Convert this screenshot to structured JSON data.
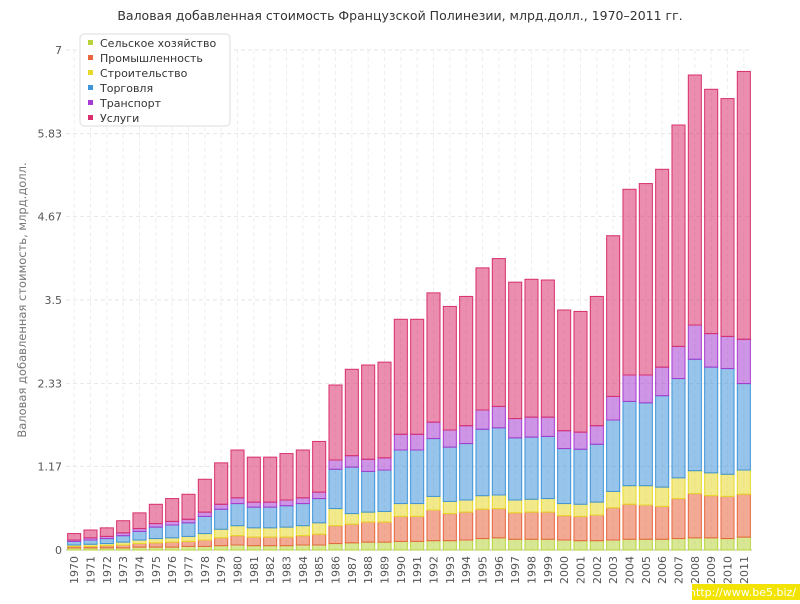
{
  "chart_data": {
    "type": "stacked_bar",
    "title": "Валовая добавленная стоимость Французской Полинезии, млрд.долл., 1970–2011 гг.",
    "y_label": "Валовая добавленная стоимость, млрд.долл.",
    "watermark": "http://www.be5.biz/",
    "legend": "top-left",
    "grid": true,
    "ylim": [
      0,
      7
    ],
    "yticks": [
      0,
      1.17,
      2.33,
      3.5,
      4.67,
      5.83,
      7
    ],
    "categories": [
      "1970",
      "1971",
      "1972",
      "1973",
      "1974",
      "1975",
      "1976",
      "1977",
      "1978",
      "1979",
      "1980",
      "1981",
      "1982",
      "1983",
      "1984",
      "1985",
      "1986",
      "1987",
      "1988",
      "1989",
      "1990",
      "1991",
      "1992",
      "1993",
      "1994",
      "1995",
      "1996",
      "1997",
      "1998",
      "1999",
      "2000",
      "2001",
      "2002",
      "2003",
      "2004",
      "2005",
      "2006",
      "2007",
      "2008",
      "2009",
      "2010",
      "2011"
    ],
    "series": [
      {
        "name": "Сельское хозяйство",
        "color": "#b8d43a",
        "values": [
          0.03,
          0.03,
          0.03,
          0.03,
          0.04,
          0.04,
          0.04,
          0.05,
          0.05,
          0.06,
          0.07,
          0.06,
          0.06,
          0.06,
          0.07,
          0.07,
          0.09,
          0.1,
          0.11,
          0.11,
          0.12,
          0.12,
          0.13,
          0.13,
          0.14,
          0.16,
          0.17,
          0.15,
          0.15,
          0.15,
          0.14,
          0.13,
          0.13,
          0.14,
          0.15,
          0.15,
          0.15,
          0.16,
          0.17,
          0.17,
          0.16,
          0.18
        ]
      },
      {
        "name": "Промышленность",
        "color": "#e8653e",
        "values": [
          0.02,
          0.02,
          0.03,
          0.04,
          0.05,
          0.06,
          0.07,
          0.07,
          0.09,
          0.11,
          0.13,
          0.12,
          0.12,
          0.12,
          0.13,
          0.15,
          0.25,
          0.26,
          0.28,
          0.28,
          0.35,
          0.35,
          0.43,
          0.38,
          0.39,
          0.41,
          0.41,
          0.37,
          0.38,
          0.38,
          0.34,
          0.34,
          0.36,
          0.45,
          0.49,
          0.48,
          0.46,
          0.56,
          0.62,
          0.59,
          0.59,
          0.6
        ]
      },
      {
        "name": "Строительство",
        "color": "#e8d82a",
        "values": [
          0.02,
          0.03,
          0.03,
          0.04,
          0.05,
          0.06,
          0.06,
          0.07,
          0.09,
          0.12,
          0.14,
          0.13,
          0.13,
          0.14,
          0.14,
          0.16,
          0.24,
          0.15,
          0.14,
          0.15,
          0.18,
          0.18,
          0.19,
          0.17,
          0.17,
          0.19,
          0.19,
          0.18,
          0.18,
          0.19,
          0.17,
          0.17,
          0.18,
          0.23,
          0.26,
          0.27,
          0.27,
          0.29,
          0.32,
          0.32,
          0.31,
          0.34
        ]
      },
      {
        "name": "Торговля",
        "color": "#3f94d8",
        "values": [
          0.05,
          0.06,
          0.07,
          0.09,
          0.12,
          0.16,
          0.18,
          0.19,
          0.24,
          0.28,
          0.31,
          0.29,
          0.29,
          0.3,
          0.31,
          0.34,
          0.55,
          0.65,
          0.57,
          0.58,
          0.75,
          0.75,
          0.81,
          0.76,
          0.79,
          0.93,
          0.94,
          0.87,
          0.87,
          0.87,
          0.77,
          0.77,
          0.81,
          1.0,
          1.18,
          1.16,
          1.28,
          1.39,
          1.56,
          1.48,
          1.48,
          1.21
        ]
      },
      {
        "name": "Транспорт",
        "color": "#a63ccf",
        "values": [
          0.02,
          0.03,
          0.03,
          0.04,
          0.04,
          0.05,
          0.05,
          0.05,
          0.06,
          0.07,
          0.08,
          0.07,
          0.07,
          0.08,
          0.08,
          0.09,
          0.13,
          0.16,
          0.17,
          0.17,
          0.22,
          0.22,
          0.23,
          0.24,
          0.25,
          0.27,
          0.3,
          0.27,
          0.28,
          0.27,
          0.25,
          0.24,
          0.26,
          0.33,
          0.37,
          0.39,
          0.4,
          0.45,
          0.48,
          0.47,
          0.45,
          0.62
        ]
      },
      {
        "name": "Услуги",
        "color": "#d8306c",
        "values": [
          0.09,
          0.11,
          0.12,
          0.17,
          0.22,
          0.27,
          0.32,
          0.35,
          0.46,
          0.58,
          0.67,
          0.63,
          0.63,
          0.65,
          0.67,
          0.71,
          1.05,
          1.21,
          1.32,
          1.34,
          1.61,
          1.61,
          1.81,
          1.73,
          1.81,
          1.99,
          2.07,
          1.91,
          1.93,
          1.92,
          1.69,
          1.69,
          1.81,
          2.25,
          2.6,
          2.68,
          2.77,
          3.1,
          3.5,
          3.42,
          3.33,
          3.75
        ]
      }
    ]
  }
}
